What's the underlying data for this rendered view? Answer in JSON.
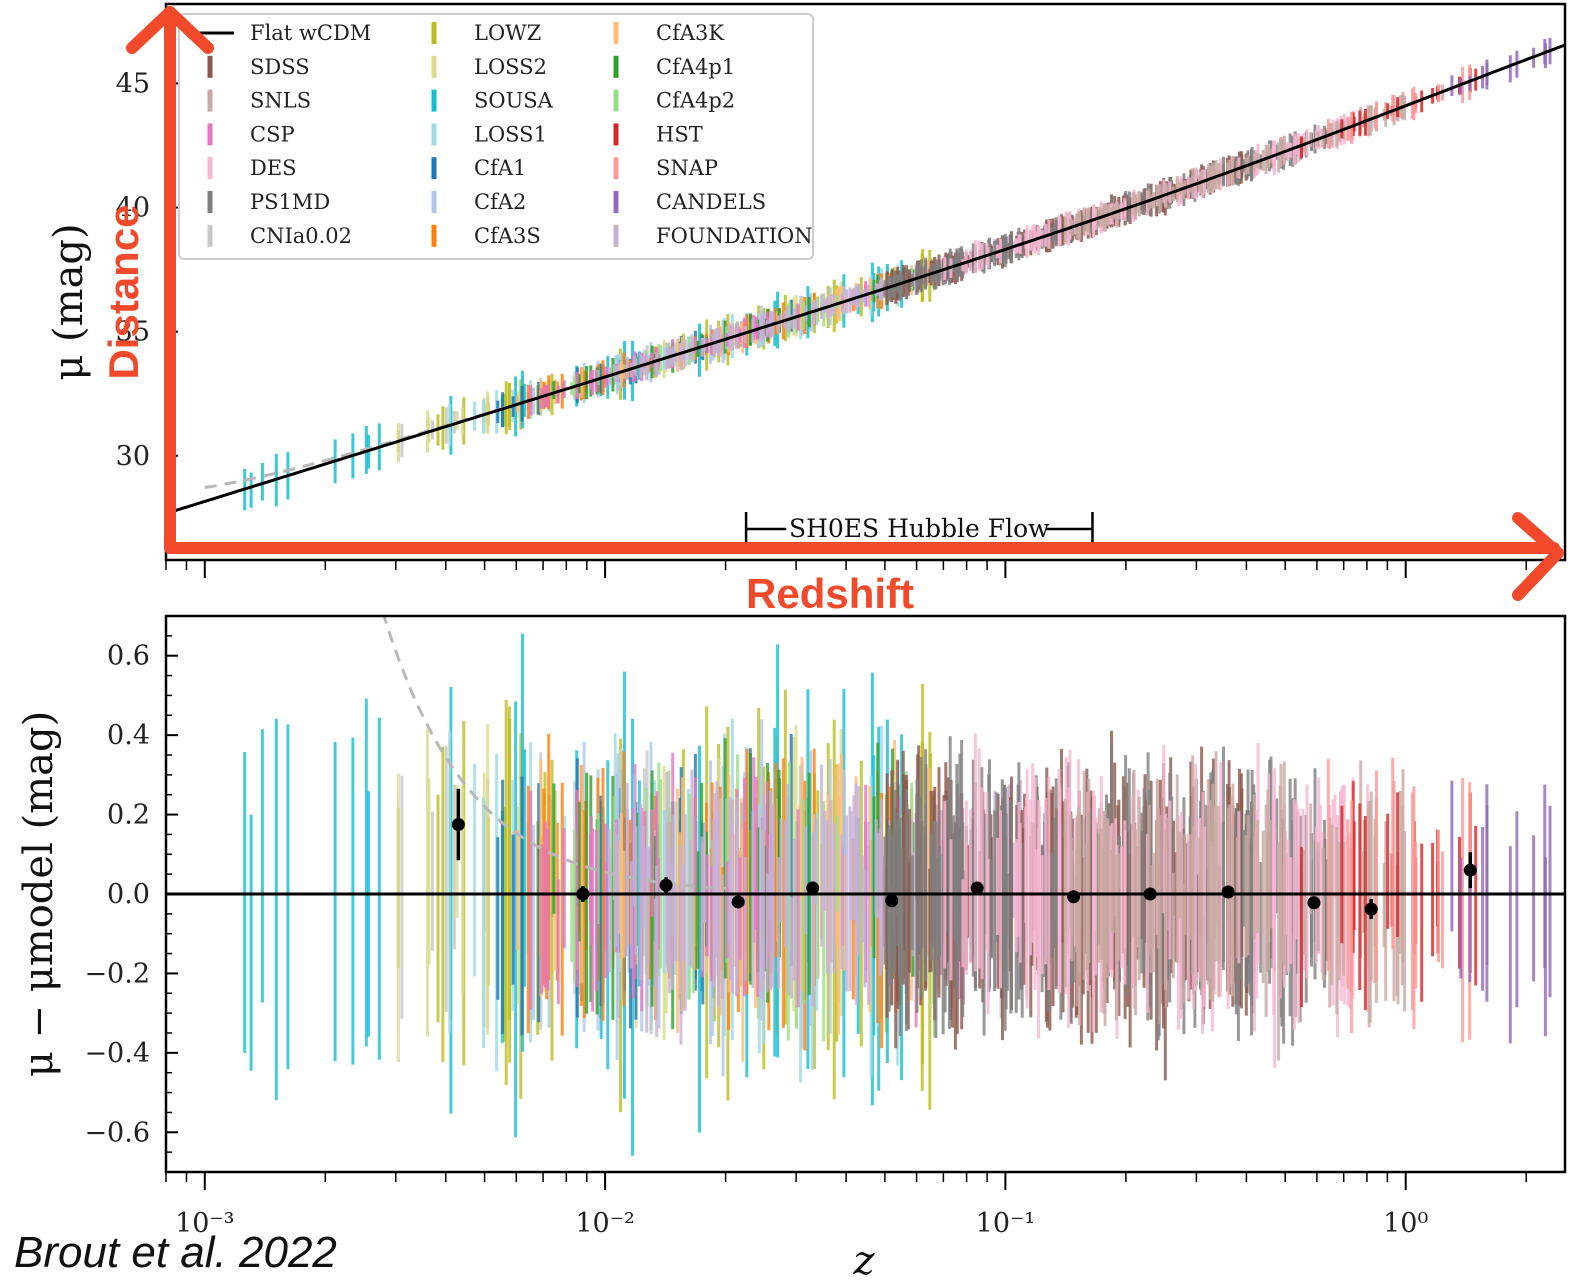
{
  "chart_data": [
    {
      "type": "scatter",
      "panel": "top",
      "xscale": "log",
      "xlim": [
        0.0008,
        2.5
      ],
      "ylim": [
        25.8,
        48.2
      ],
      "ylabel": "μ (mag)",
      "yticks": [
        30,
        35,
        40,
        45
      ],
      "ytick_labels": [
        "30",
        "35",
        "40",
        "45"
      ],
      "grid": false,
      "legend_position": "upper-left",
      "legend": [
        {
          "name": "Flat wCDM",
          "color": "#000000",
          "style": "line"
        },
        {
          "name": "SDSS",
          "color": "#8c564b"
        },
        {
          "name": "SNLS",
          "color": "#c9a9a3"
        },
        {
          "name": "CSP",
          "color": "#e377c2"
        },
        {
          "name": "DES",
          "color": "#f7b6d2"
        },
        {
          "name": "PS1MD",
          "color": "#7f7f7f"
        },
        {
          "name": "CNIa0.02",
          "color": "#c7c7c7"
        },
        {
          "name": "LOWZ",
          "color": "#bcbd22"
        },
        {
          "name": "LOSS2",
          "color": "#dbdb8d"
        },
        {
          "name": "SOUSA",
          "color": "#17becf"
        },
        {
          "name": "LOSS1",
          "color": "#9edae5"
        },
        {
          "name": "CfA1",
          "color": "#1f77b4"
        },
        {
          "name": "CfA2",
          "color": "#aec7e8"
        },
        {
          "name": "CfA3S",
          "color": "#ff7f0e"
        },
        {
          "name": "CfA3K",
          "color": "#ffbb78"
        },
        {
          "name": "CfA4p1",
          "color": "#2ca02c"
        },
        {
          "name": "CfA4p2",
          "color": "#98df8a"
        },
        {
          "name": "HST",
          "color": "#d62728"
        },
        {
          "name": "SNAP",
          "color": "#ff9896"
        },
        {
          "name": "CANDELS",
          "color": "#9467bd"
        },
        {
          "name": "FOUNDATION",
          "color": "#c5b0d5"
        }
      ],
      "annotation": {
        "text": "SH0ES Hubble Flow",
        "x_range": [
          0.0225,
          0.165
        ]
      }
    },
    {
      "type": "scatter",
      "panel": "bottom",
      "xscale": "log",
      "xlim": [
        0.0008,
        2.5
      ],
      "ylim": [
        -0.7,
        0.7
      ],
      "xlabel": "z",
      "ylabel": "μ − μmodel (mag)",
      "yticks": [
        -0.6,
        -0.4,
        -0.2,
        0.0,
        0.2,
        0.4,
        0.6
      ],
      "ytick_labels": [
        "−0.6",
        "−0.4",
        "−0.2",
        "0.0",
        "0.2",
        "0.4",
        "0.6"
      ],
      "xticks": [
        0.001,
        0.01,
        0.1,
        1
      ],
      "xtick_labels": [
        "10⁻³",
        "10⁻²",
        "10⁻¹",
        "10⁰"
      ],
      "reference_line": 0.0,
      "binned_means": {
        "color": "#000000",
        "x": [
          0.0043,
          0.0088,
          0.0142,
          0.0215,
          0.033,
          0.052,
          0.085,
          0.148,
          0.23,
          0.36,
          0.59,
          0.82,
          1.45
        ],
        "y": [
          0.175,
          0.0,
          0.022,
          -0.02,
          0.015,
          -0.017,
          0.015,
          -0.007,
          0.0,
          0.005,
          -0.022,
          -0.038,
          0.06
        ],
        "err": [
          0.09,
          0.02,
          0.02,
          0.015,
          0.015,
          0.015,
          0.015,
          0.015,
          0.012,
          0.012,
          0.015,
          0.025,
          0.045
        ]
      }
    }
  ],
  "overlay": {
    "y_arrow_label": "Distance",
    "x_arrow_label": "Redshift",
    "color": "#f2492a"
  },
  "credit": "Brout et al. 2022"
}
